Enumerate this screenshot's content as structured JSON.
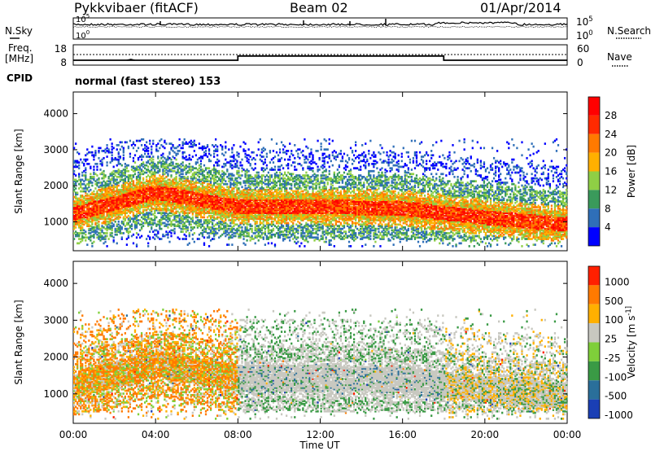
{
  "header": {
    "station": "Pykkvibaer (fitACF)",
    "beam": "Beam 02",
    "date": "01/Apr/2014"
  },
  "chart_data": [
    {
      "type": "line",
      "panel": "noise",
      "left_label": "N.Sky",
      "right_label": "N.Search",
      "left_ticks": [
        "10^5",
        "10^0"
      ],
      "right_ticks": [
        "10^5",
        "10^0"
      ]
    },
    {
      "type": "line",
      "panel": "frequency",
      "left_label": "Freq.",
      "left_unit": "[MHz]",
      "right_label": "Nave",
      "left_ticks": [
        "18",
        "8"
      ],
      "right_ticks": [
        "60",
        "0"
      ],
      "freq_segments": [
        {
          "from": "00:00",
          "to": "08:00",
          "value_mhz": 10
        },
        {
          "from": "08:00",
          "to": "18:00",
          "value_mhz": 12
        },
        {
          "from": "18:00",
          "to": "24:00",
          "value_mhz": 10
        }
      ]
    },
    {
      "type": "text",
      "panel": "cpid",
      "label": "CPID",
      "value": "normal (fast stereo) 153"
    },
    {
      "type": "heatmap",
      "panel": "power",
      "ylabel": "Slant Range [km]",
      "yticks": [
        1000,
        2000,
        3000,
        4000
      ],
      "ylim": [
        200,
        4600
      ],
      "colorbar_label": "Power [dB]",
      "colorbar_ticks": [
        "4",
        "8",
        "12",
        "16",
        "20",
        "24",
        "28"
      ],
      "colors": [
        "#0000ff",
        "#2f6fb8",
        "#3a9a5b",
        "#8fcf45",
        "#ffb000",
        "#ff7a00",
        "#ff2a00",
        "#ff0000"
      ],
      "dominant_band_km": [
        {
          "t": "00:00",
          "center": 1200
        },
        {
          "t": "04:00",
          "center": 1800
        },
        {
          "t": "08:00",
          "center": 1400
        },
        {
          "t": "12:00",
          "center": 1400
        },
        {
          "t": "16:00",
          "center": 1350
        },
        {
          "t": "20:00",
          "center": 1100
        },
        {
          "t": "24:00",
          "center": 900
        }
      ]
    },
    {
      "type": "heatmap",
      "panel": "velocity",
      "ylabel": "Slant Range [km]",
      "yticks": [
        1000,
        2000,
        3000,
        4000
      ],
      "ylim": [
        200,
        4600
      ],
      "colorbar_label": "Velocity [m s^-1]",
      "colorbar_ticks": [
        "1000",
        "500",
        "100",
        "25",
        "-25",
        "-100",
        "-500",
        "-1000"
      ],
      "colors": [
        "#1a3fb5",
        "#2a6f9a",
        "#3a9a45",
        "#7fcf3a",
        "#c8c8c0",
        "#ffb000",
        "#ff7a00",
        "#ff2000"
      ],
      "xlabel": "Time UT",
      "xticks": [
        "00:00",
        "04:00",
        "08:00",
        "12:00",
        "16:00",
        "20:00",
        "00:00"
      ]
    }
  ]
}
